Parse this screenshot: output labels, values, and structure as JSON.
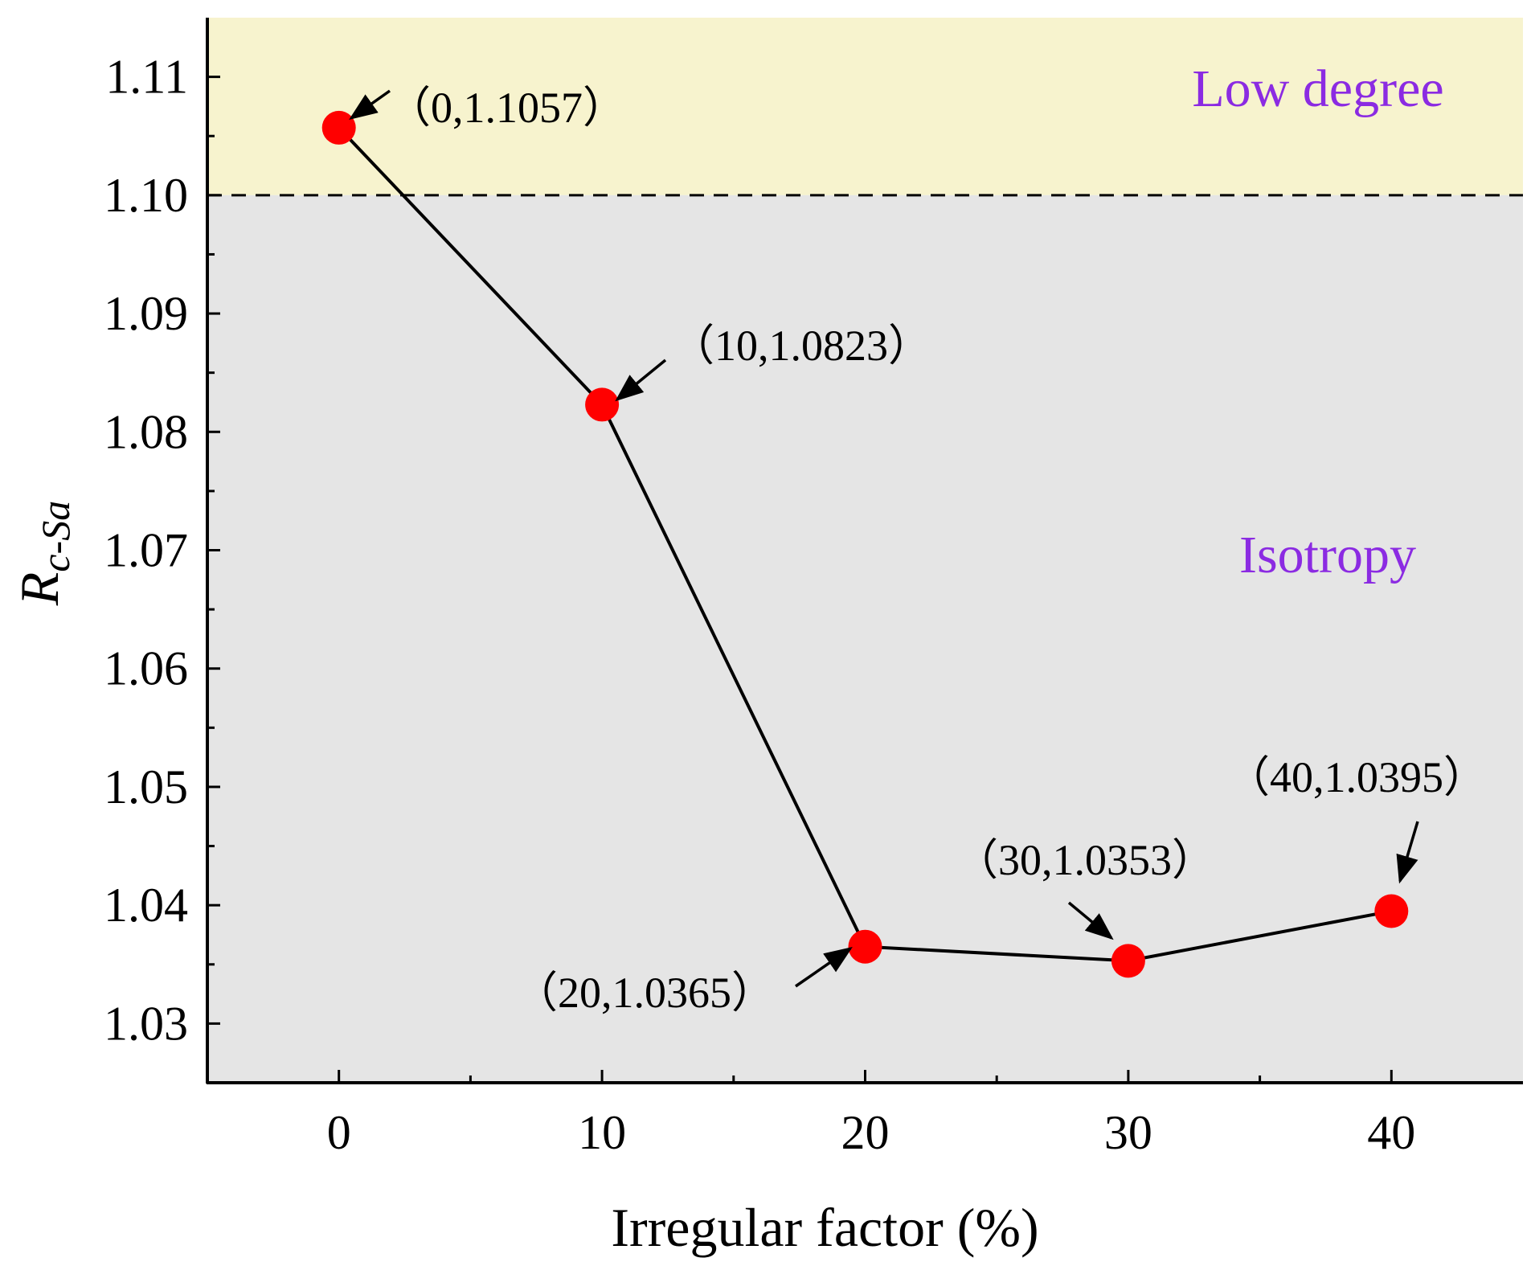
{
  "chart_data": {
    "type": "line",
    "title": "",
    "xlabel": "Irregular factor (%)",
    "ylabel": {
      "main": "R",
      "subscript": "c-Sa"
    },
    "x": [
      0,
      10,
      20,
      30,
      40
    ],
    "series": [
      {
        "name": "R_c-Sa",
        "values": [
          1.1057,
          1.0823,
          1.0365,
          1.0353,
          1.0395
        ]
      }
    ],
    "xlim": [
      -5,
      45
    ],
    "ylim": [
      1.025,
      1.115
    ],
    "x_ticks": [
      0,
      10,
      20,
      30,
      40
    ],
    "x_ticks_display": [
      "0",
      "10",
      "20",
      "30",
      "40"
    ],
    "y_ticks": [
      1.03,
      1.04,
      1.05,
      1.06,
      1.07,
      1.08,
      1.09,
      1.1,
      1.11
    ],
    "y_ticks_display": [
      "1.03",
      "1.04",
      "1.05",
      "1.06",
      "1.07",
      "1.08",
      "1.09",
      "1.10",
      "1.11"
    ],
    "threshold": 1.1,
    "annotations": [
      "（0,1.1057）",
      "（10,1.0823）",
      "（20,1.0365）",
      "（30,1.0353）",
      "（40,1.0395）"
    ],
    "regions": [
      {
        "name": "Low degree",
        "from": 1.1,
        "to": 1.115,
        "fill": "#f7f3ce"
      },
      {
        "name": "Isotropy",
        "from": 1.025,
        "to": 1.1,
        "fill": "#e5e5e5"
      }
    ],
    "colors": {
      "marker": "#ff0000",
      "line": "#000000",
      "region_text": "#8b2be2"
    }
  }
}
